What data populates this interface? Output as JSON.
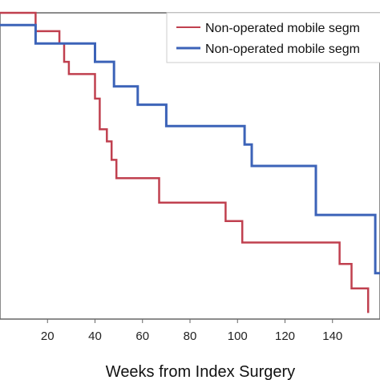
{
  "chart_data": {
    "type": "line",
    "step": true,
    "xlabel": "Weeks from Index Surgery",
    "ylabel": "",
    "xlim": [
      0,
      160
    ],
    "x_ticks": [
      20,
      40,
      60,
      80,
      100,
      120,
      140
    ],
    "grid": false,
    "legend_position": "top-right",
    "series": [
      {
        "name": "Non-operated mobile segm",
        "color": "#c0404f",
        "points": [
          [
            0,
            1.0
          ],
          [
            15,
            1.0
          ],
          [
            15,
            0.94
          ],
          [
            25,
            0.94
          ],
          [
            25,
            0.9
          ],
          [
            27,
            0.9
          ],
          [
            27,
            0.84
          ],
          [
            29,
            0.84
          ],
          [
            29,
            0.8
          ],
          [
            40,
            0.8
          ],
          [
            40,
            0.72
          ],
          [
            42,
            0.72
          ],
          [
            42,
            0.62
          ],
          [
            45,
            0.62
          ],
          [
            45,
            0.58
          ],
          [
            47,
            0.58
          ],
          [
            47,
            0.52
          ],
          [
            49,
            0.52
          ],
          [
            49,
            0.46
          ],
          [
            67,
            0.46
          ],
          [
            67,
            0.38
          ],
          [
            95,
            0.38
          ],
          [
            95,
            0.32
          ],
          [
            102,
            0.32
          ],
          [
            102,
            0.25
          ],
          [
            143,
            0.25
          ],
          [
            143,
            0.18
          ],
          [
            148,
            0.18
          ],
          [
            148,
            0.1
          ],
          [
            155,
            0.1
          ],
          [
            155,
            0.02
          ]
        ]
      },
      {
        "name": "Non-operated mobile segm",
        "color": "#3c63b8",
        "points": [
          [
            0,
            0.96
          ],
          [
            15,
            0.96
          ],
          [
            15,
            0.9
          ],
          [
            40,
            0.9
          ],
          [
            40,
            0.84
          ],
          [
            48,
            0.84
          ],
          [
            48,
            0.76
          ],
          [
            58,
            0.76
          ],
          [
            58,
            0.7
          ],
          [
            70,
            0.7
          ],
          [
            70,
            0.63
          ],
          [
            103,
            0.63
          ],
          [
            103,
            0.57
          ],
          [
            106,
            0.57
          ],
          [
            106,
            0.5
          ],
          [
            133,
            0.5
          ],
          [
            133,
            0.34
          ],
          [
            158,
            0.34
          ],
          [
            158,
            0.15
          ],
          [
            160,
            0.15
          ]
        ]
      }
    ]
  }
}
